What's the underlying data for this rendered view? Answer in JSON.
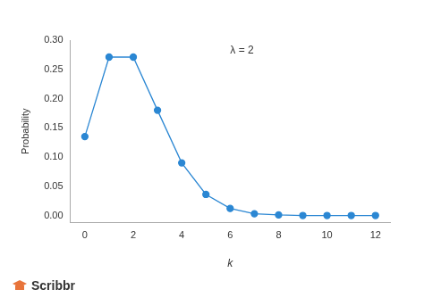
{
  "chart_data": {
    "type": "line",
    "x_label": "k",
    "y_label": "Probability",
    "annotations": [
      "λ = 2",
      "Scribbr"
    ],
    "x": [
      0,
      1,
      2,
      3,
      4,
      5,
      6,
      7,
      8,
      9,
      10,
      11,
      12
    ],
    "values": [
      0.135,
      0.271,
      0.271,
      0.18,
      0.09,
      0.036,
      0.012,
      0.003,
      0.001,
      0.0,
      0.0,
      0.0,
      0.0
    ],
    "color": "#2b87d3",
    "marker": "circle",
    "line_style": "solid",
    "xlim": [
      -0.6,
      12.6
    ],
    "xticks": [
      0,
      2,
      4,
      6,
      8,
      10,
      12
    ],
    "ylim": [
      -0.012,
      0.3
    ],
    "yticks": [
      {
        "value": 0,
        "label": "0.00"
      },
      {
        "value": 0.05,
        "label": "0.05"
      },
      {
        "value": 0.1,
        "label": "0.10"
      },
      {
        "value": 0.15,
        "label": "0.15"
      },
      {
        "value": 0.2,
        "label": "0.20"
      },
      {
        "value": 0.25,
        "label": "0.25"
      },
      {
        "value": 0.3,
        "label": "0.30"
      }
    ],
    "grid": false
  }
}
